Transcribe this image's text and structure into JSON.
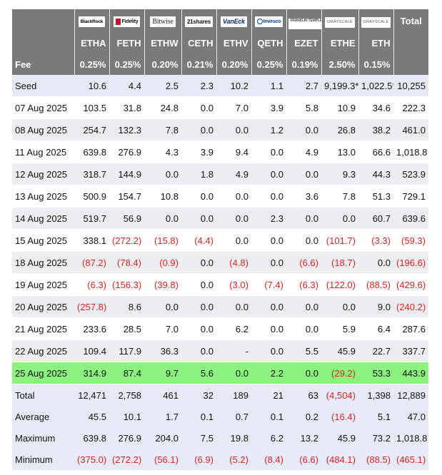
{
  "issuers": [
    {
      "logo": "BlackRock",
      "ticker": "ETHA",
      "fee": "0.25%"
    },
    {
      "logo": "Fidelity",
      "ticker": "FETH",
      "fee": "0.25%"
    },
    {
      "logo": "Bitwise",
      "ticker": "ETHW",
      "fee": "0.20%"
    },
    {
      "logo": "21shares",
      "ticker": "CETH",
      "fee": "0.21%"
    },
    {
      "logo": "VanEck",
      "ticker": "ETHV",
      "fee": "0.20%"
    },
    {
      "logo": "Invesco",
      "ticker": "QETH",
      "fee": "0.25%"
    },
    {
      "logo": "FRANKLIN TEMPLETON",
      "ticker": "EZET",
      "fee": "0.19%"
    },
    {
      "logo": "GRAYSCALE",
      "ticker": "ETHE",
      "fee": "2.50%"
    },
    {
      "logo": "GRAYSCALE",
      "ticker": "ETH",
      "fee": "0.15%"
    }
  ],
  "total_header": "Total",
  "fee_label": "Fee",
  "rows": [
    {
      "label": "Seed",
      "style": "seed",
      "values": [
        "10.6",
        "4.4",
        "2.5",
        "2.3",
        "10.2",
        "1.1",
        "2.7",
        "9,199.3*",
        "1,022.5*",
        "10,255"
      ]
    },
    {
      "label": "07 Aug 2025",
      "style": "white",
      "values": [
        "103.5",
        "31.8",
        "24.8",
        "0.0",
        "7.0",
        "3.9",
        "5.8",
        "10.9",
        "34.6",
        "222.3"
      ]
    },
    {
      "label": "08 Aug 2025",
      "style": "shade",
      "values": [
        "254.7",
        "132.3",
        "7.8",
        "0.0",
        "0.0",
        "1.2",
        "0.0",
        "26.8",
        "38.2",
        "461.0"
      ]
    },
    {
      "label": "11 Aug 2025",
      "style": "white",
      "values": [
        "639.8",
        "276.9",
        "4.3",
        "3.9",
        "9.4",
        "0.0",
        "4.9",
        "13.0",
        "66.6",
        "1,018.8"
      ]
    },
    {
      "label": "12 Aug 2025",
      "style": "shade",
      "values": [
        "318.7",
        "144.9",
        "0.0",
        "1.8",
        "4.9",
        "0.0",
        "0.0",
        "9.3",
        "44.3",
        "523.9"
      ]
    },
    {
      "label": "13 Aug 2025",
      "style": "white",
      "values": [
        "500.9",
        "154.7",
        "10.8",
        "0.0",
        "0.0",
        "0.0",
        "3.6",
        "7.8",
        "51.3",
        "729.1"
      ]
    },
    {
      "label": "14 Aug 2025",
      "style": "shade",
      "values": [
        "519.7",
        "56.9",
        "0.0",
        "0.0",
        "0.0",
        "2.3",
        "0.0",
        "0.0",
        "60.7",
        "639.6"
      ]
    },
    {
      "label": "15 Aug 2025",
      "style": "white",
      "values": [
        "338.1",
        "(272.2)",
        "(15.8)",
        "(4.4)",
        "0.0",
        "0.0",
        "0.0",
        "(101.7)",
        "(3.3)",
        "(59.3)"
      ]
    },
    {
      "label": "18 Aug 2025",
      "style": "shade",
      "values": [
        "(87.2)",
        "(78.4)",
        "(0.9)",
        "0.0",
        "(4.8)",
        "0.0",
        "(6.6)",
        "(18.7)",
        "0.0",
        "(196.6)"
      ]
    },
    {
      "label": "19 Aug 2025",
      "style": "white",
      "values": [
        "(6.3)",
        "(156.3)",
        "(39.8)",
        "0.0",
        "(3.0)",
        "(7.4)",
        "(6.3)",
        "(122.0)",
        "(88.5)",
        "(429.6)"
      ]
    },
    {
      "label": "20 Aug 2025",
      "style": "shade",
      "values": [
        "(257.8)",
        "8.6",
        "0.0",
        "0.0",
        "0.0",
        "0.0",
        "0.0",
        "0.0",
        "9.0",
        "(240.2)"
      ]
    },
    {
      "label": "21 Aug 2025",
      "style": "white",
      "values": [
        "233.6",
        "28.5",
        "7.0",
        "0.0",
        "6.2",
        "0.0",
        "0.0",
        "5.9",
        "6.4",
        "287.6"
      ]
    },
    {
      "label": "22 Aug 2025",
      "style": "shade",
      "values": [
        "109.4",
        "117.9",
        "36.3",
        "0.0",
        "-",
        "0.0",
        "5.5",
        "45.9",
        "22.7",
        "337.7"
      ]
    },
    {
      "label": "25 Aug 2025",
      "style": "hl",
      "values": [
        "314.9",
        "87.4",
        "9.7",
        "5.6",
        "0.0",
        "2.2",
        "0.0",
        "(29.2)",
        "53.3",
        "443.9"
      ]
    },
    {
      "label": "Total",
      "style": "summary",
      "values": [
        "12,471",
        "2,758",
        "461",
        "32",
        "189",
        "21",
        "63",
        "(4,504)",
        "1,398",
        "12,889"
      ]
    },
    {
      "label": "Average",
      "style": "summary",
      "values": [
        "45.5",
        "10.1",
        "1.7",
        "0.1",
        "0.7",
        "0.1",
        "0.2",
        "(16.4)",
        "5.1",
        "47.0"
      ]
    },
    {
      "label": "Maximum",
      "style": "summary",
      "values": [
        "639.8",
        "276.9",
        "204.0",
        "7.5",
        "19.8",
        "6.2",
        "13.2",
        "45.9",
        "73.2",
        "1,018.8"
      ]
    },
    {
      "label": "Minimum",
      "style": "summary",
      "values": [
        "(375.0)",
        "(272.2)",
        "(56.1)",
        "(6.9)",
        "(5.2)",
        "(8.4)",
        "(6.6)",
        "(484.1)",
        "(88.5)",
        "(465.1)"
      ]
    }
  ],
  "colors": {
    "header_bg": "#7a7a7a",
    "seed_summary_bg": "#e6ebf7",
    "stripe_bg": "#eceef1",
    "highlight_bg": "#8cf27f",
    "negative_text": "#e02020"
  }
}
